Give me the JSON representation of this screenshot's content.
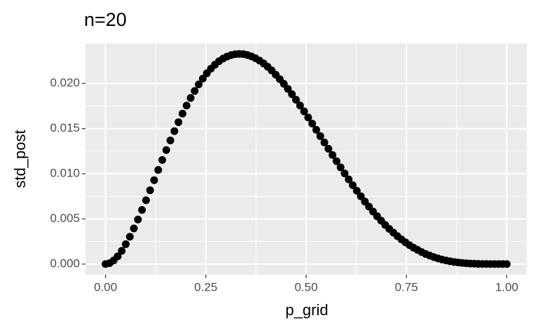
{
  "chart_data": {
    "type": "scatter",
    "title": "n=20",
    "x_label": "p_grid",
    "y_label": "std_post",
    "color": "#000000",
    "grid": true,
    "xlim": [
      -0.05,
      1.05
    ],
    "ylim": [
      -0.00116,
      0.02443
    ],
    "xticks": [
      {
        "value": 0,
        "label": "0.00"
      },
      {
        "value": 0.25,
        "label": "0.25"
      },
      {
        "value": 0.5,
        "label": "0.50"
      },
      {
        "value": 0.75,
        "label": "0.75"
      },
      {
        "value": 1,
        "label": "1.00"
      }
    ],
    "yticks": [
      {
        "value": 0,
        "label": "0.000"
      },
      {
        "value": 0.005,
        "label": "0.005"
      },
      {
        "value": 0.01,
        "label": "0.010"
      },
      {
        "value": 0.015,
        "label": "0.015"
      },
      {
        "value": 0.02,
        "label": "0.020"
      }
    ],
    "x": [
      0,
      0.0101,
      0.0202,
      0.0303,
      0.0404,
      0.0505,
      0.0606,
      0.0707,
      0.0808,
      0.0909,
      0.101,
      0.1111,
      0.1212,
      0.1313,
      0.1414,
      0.1515,
      0.1616,
      0.1717,
      0.1818,
      0.1919,
      0.202,
      0.2121,
      0.2222,
      0.2323,
      0.2424,
      0.2525,
      0.2626,
      0.2727,
      0.2828,
      0.2929,
      0.303,
      0.3131,
      0.3232,
      0.3333,
      0.3434,
      0.3535,
      0.3636,
      0.3737,
      0.3838,
      0.3939,
      0.404,
      0.4141,
      0.4242,
      0.4343,
      0.4444,
      0.4545,
      0.4646,
      0.4747,
      0.4848,
      0.4949,
      0.5051,
      0.5152,
      0.5253,
      0.5354,
      0.5455,
      0.5556,
      0.5657,
      0.5758,
      0.5859,
      0.596,
      0.6061,
      0.6162,
      0.6263,
      0.6364,
      0.6465,
      0.6566,
      0.6667,
      0.6768,
      0.6869,
      0.697,
      0.7071,
      0.7172,
      0.7273,
      0.7374,
      0.7475,
      0.7576,
      0.7677,
      0.7778,
      0.7879,
      0.798,
      0.8081,
      0.8182,
      0.8283,
      0.8384,
      0.8485,
      0.8586,
      0.8687,
      0.8788,
      0.8889,
      0.899,
      0.9091,
      0.9192,
      0.9293,
      0.9394,
      0.9495,
      0.9596,
      0.9697,
      0.9798,
      0.9899,
      1
    ],
    "values": [
      0,
      0.0001,
      0.0004,
      0.00086,
      0.00147,
      0.0022,
      0.00303,
      0.00395,
      0.00494,
      0.00599,
      0.00707,
      0.00817,
      0.00929,
      0.01042,
      0.01153,
      0.01262,
      0.01369,
      0.01472,
      0.01571,
      0.01666,
      0.01755,
      0.01839,
      0.01917,
      0.01989,
      0.02053,
      0.02112,
      0.02163,
      0.02207,
      0.02245,
      0.02275,
      0.02298,
      0.02314,
      0.02324,
      0.02327,
      0.02325,
      0.02315,
      0.023,
      0.02279,
      0.02253,
      0.02222,
      0.02185,
      0.02144,
      0.02097,
      0.02048,
      0.01996,
      0.0194,
      0.01881,
      0.0182,
      0.01756,
      0.01691,
      0.01623,
      0.01555,
      0.01486,
      0.01417,
      0.01347,
      0.01277,
      0.01208,
      0.01139,
      0.01071,
      0.01004,
      0.00938,
      0.00874,
      0.00812,
      0.00751,
      0.00692,
      0.00636,
      0.00582,
      0.0053,
      0.00481,
      0.00434,
      0.0039,
      0.00349,
      0.0031,
      0.00274,
      0.00241,
      0.0021,
      0.00182,
      0.00157,
      0.00133,
      0.00112,
      0.00094,
      0.00078,
      0.00063,
      0.00051,
      0.0004,
      0.00031,
      0.00024,
      0.00018,
      0.00013,
      9e-05,
      6e-05,
      4e-05,
      2e-05,
      1e-05,
      1e-05,
      0,
      0,
      0,
      0,
      0
    ]
  }
}
